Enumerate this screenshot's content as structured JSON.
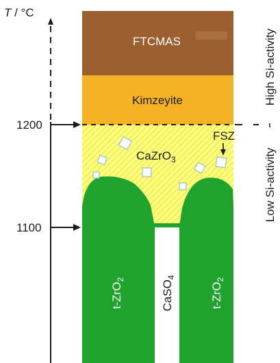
{
  "axis": {
    "temperature_label_italic": "T",
    "temperature_label_unit": " / °C",
    "ticks": [
      {
        "value": 1200,
        "label": "1200"
      },
      {
        "value": 1100,
        "label": "1100"
      }
    ]
  },
  "layers": {
    "top_layer": "FTCMAS",
    "second_layer": "Kimzeyite",
    "matrix_phase": "CaZrO",
    "matrix_subscript": "3",
    "particle_label": "FSZ",
    "left_column_label": "t-ZrO",
    "right_column_label": "t-ZrO",
    "column_subscript": "2",
    "gap_label": "CaSO",
    "gap_subscript": "4"
  },
  "side_labels": {
    "upper": "High Si-activity",
    "lower": "Low Si-activity"
  },
  "colors": {
    "top_layer": "#9c5f2f",
    "second_layer": "#f5b323",
    "matrix": "#ffff7a",
    "column": "#1fa32d",
    "axis": "#1a1a1a"
  }
}
